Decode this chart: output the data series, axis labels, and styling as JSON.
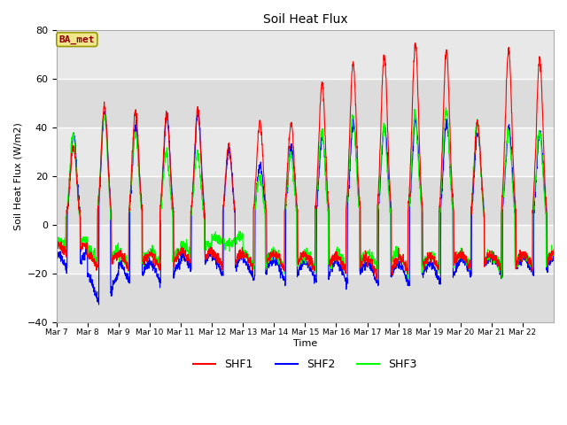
{
  "title": "Soil Heat Flux",
  "ylabel": "Soil Heat Flux (W/m2)",
  "xlabel": "Time",
  "ylim": [
    -40,
    80
  ],
  "legend_label": "BA_met",
  "series_labels": [
    "SHF1",
    "SHF2",
    "SHF3"
  ],
  "series_colors": [
    "red",
    "blue",
    "lime"
  ],
  "background_color": "#e8e8e8",
  "grid_color": "white",
  "xtick_labels": [
    "Mar 7",
    "Mar 8",
    "Mar 9",
    "Mar 10",
    "Mar 11",
    "Mar 12",
    "Mar 13",
    "Mar 14",
    "Mar 15",
    "Mar 16",
    "Mar 17",
    "Mar 18",
    "Mar 19",
    "Mar 20",
    "Mar 21",
    "Mar 22"
  ],
  "num_days": 16,
  "points_per_day": 144,
  "shf1_peaks": [
    32,
    49,
    47,
    46,
    47,
    33,
    42,
    42,
    58,
    67,
    70,
    75,
    72,
    42,
    72,
    68
  ],
  "shf2_peaks": [
    37,
    46,
    41,
    45,
    46,
    31,
    25,
    32,
    36,
    42,
    41,
    43,
    42,
    38,
    40,
    38
  ],
  "shf3_peaks": [
    37,
    46,
    38,
    30,
    30,
    0,
    20,
    29,
    38,
    45,
    40,
    45,
    48,
    42,
    38,
    38
  ],
  "shf1_mins": [
    -13,
    -20,
    -20,
    -20,
    -18,
    -19,
    -20,
    -20,
    -21,
    -22,
    -24,
    -22,
    -21,
    -20,
    -21,
    -20
  ],
  "shf2_mins": [
    -20,
    -35,
    -26,
    -26,
    -20,
    -22,
    -24,
    -25,
    -26,
    -26,
    -27,
    -27,
    -26,
    -22,
    -23,
    -22
  ],
  "shf3_mins": [
    -10,
    -17,
    -20,
    -18,
    -13,
    -8,
    -19,
    -20,
    -21,
    -20,
    -19,
    -22,
    -21,
    -20,
    -21,
    -20
  ]
}
